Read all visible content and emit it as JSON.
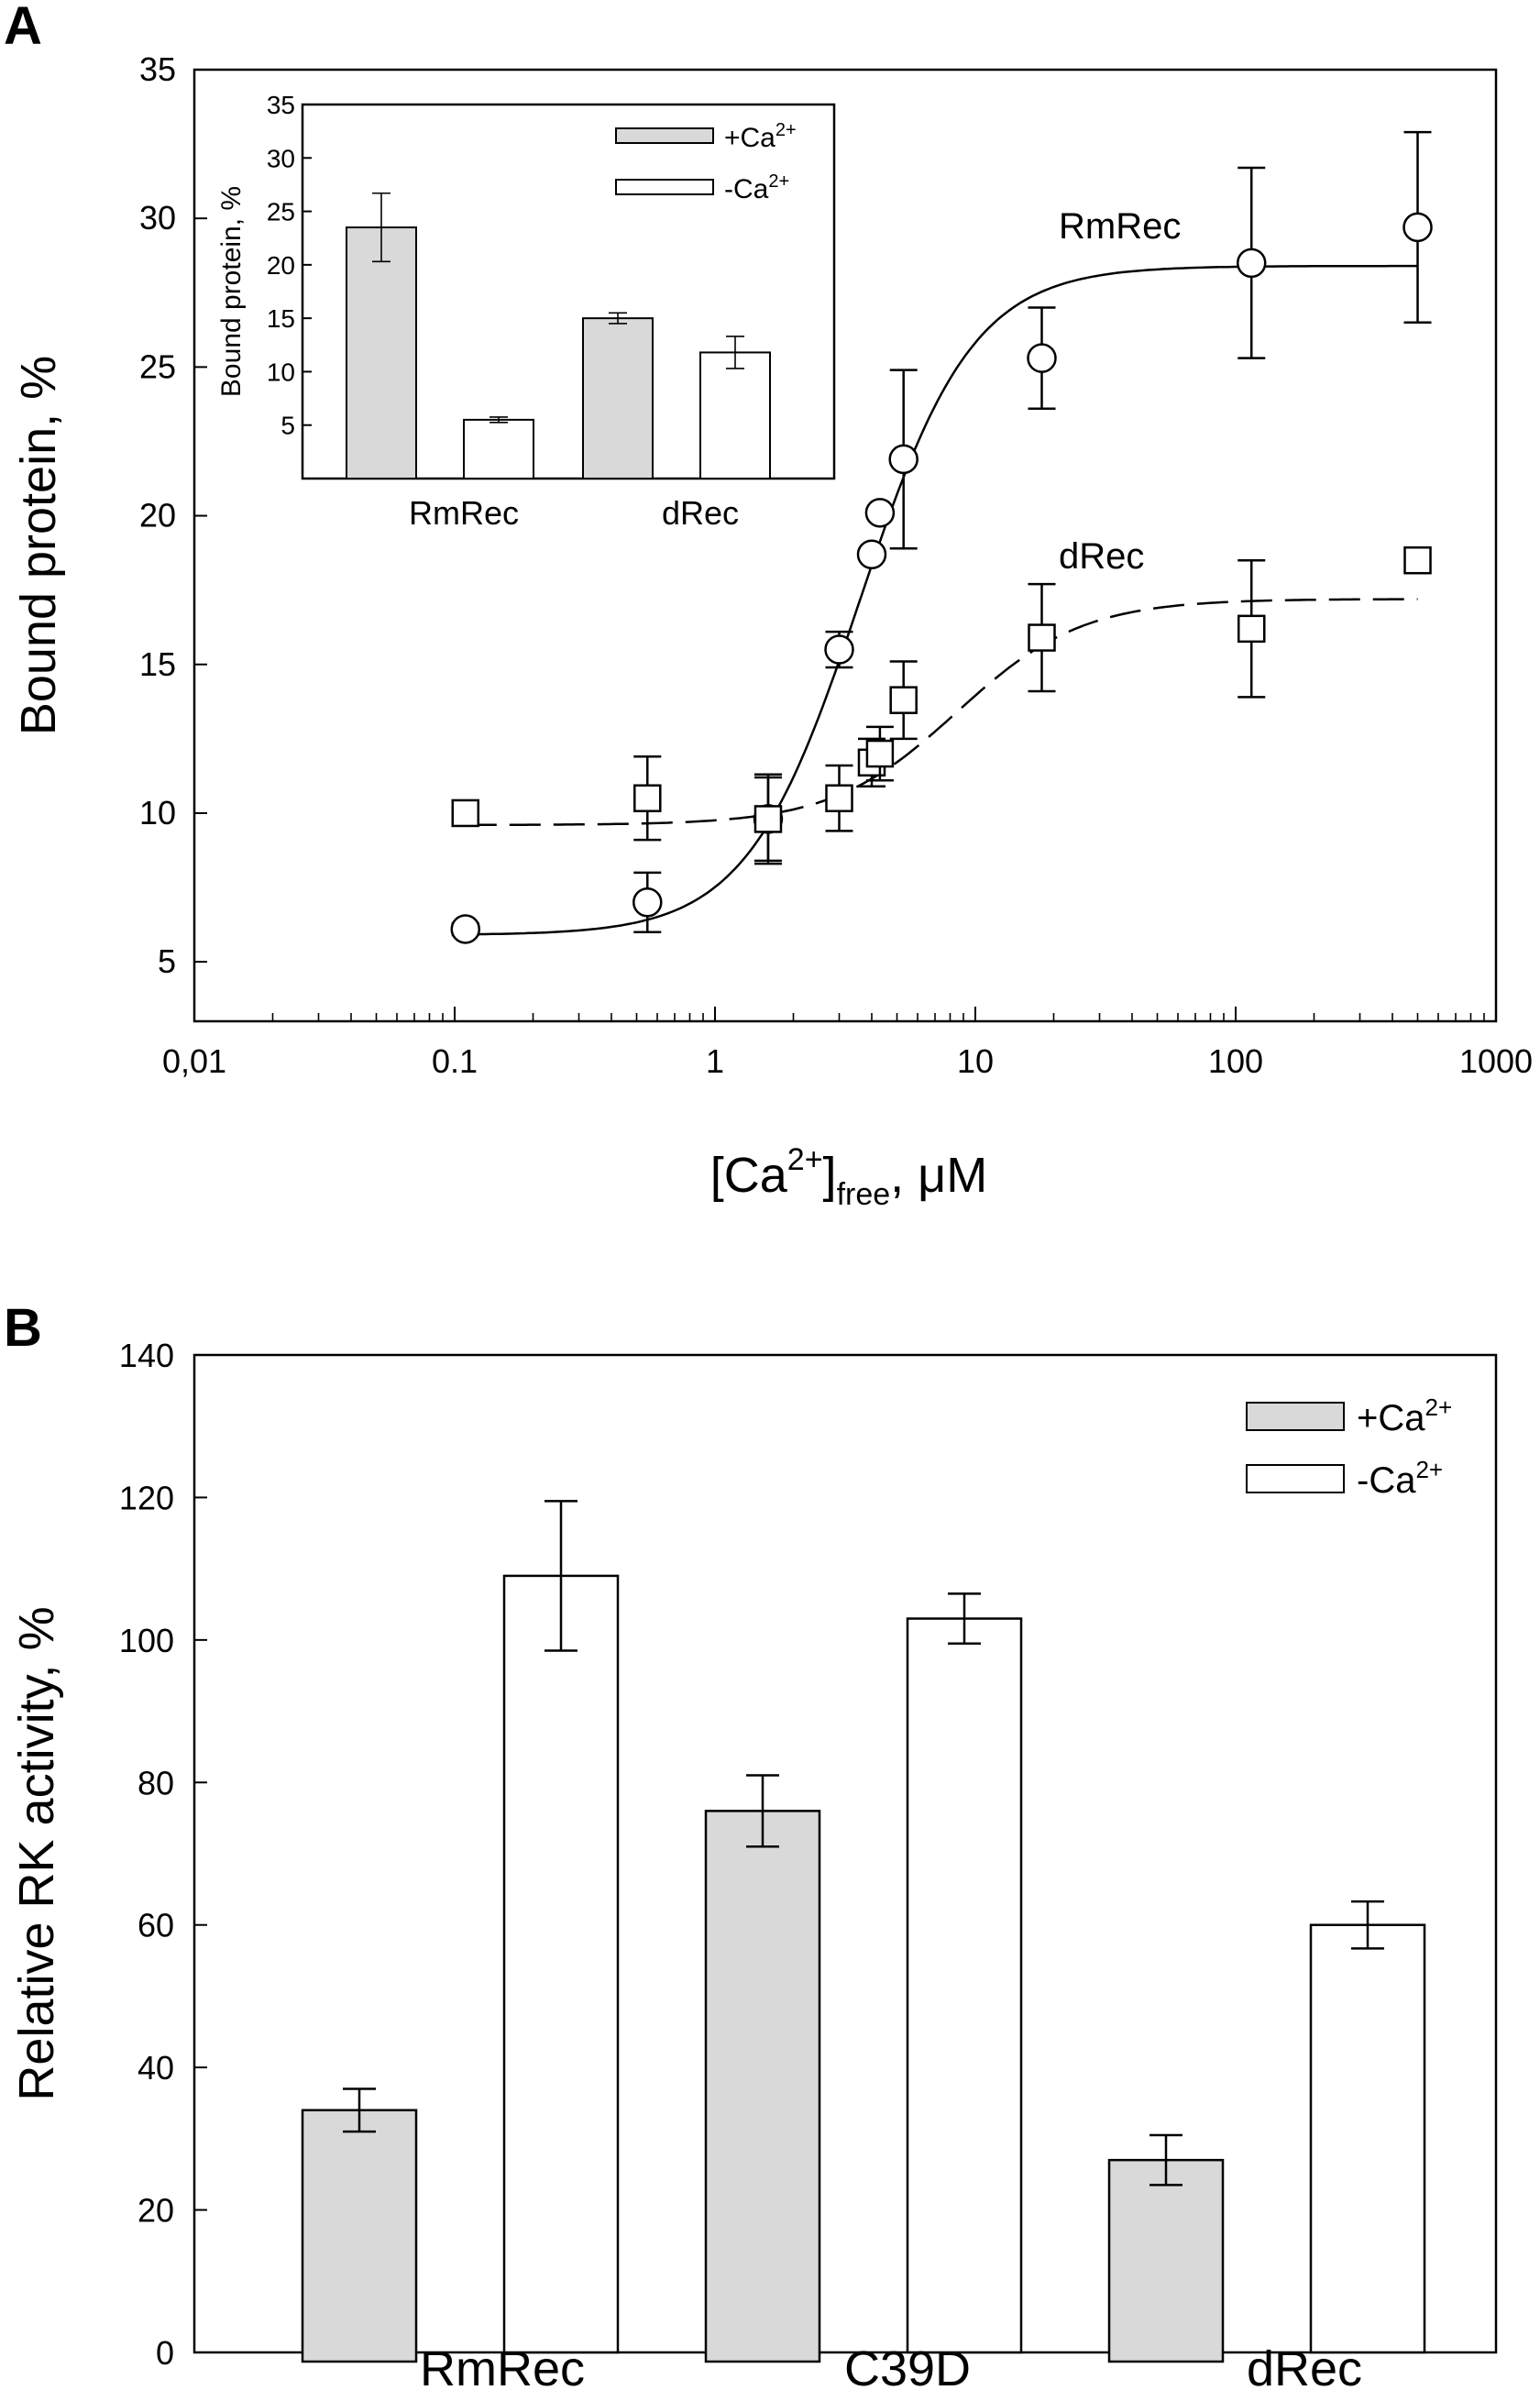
{
  "panel_a": {
    "label": "A",
    "series_labels": {
      "rmrec": "RmRec",
      "drec": "dRec"
    },
    "x_axis": {
      "title_base": "[Ca",
      "title_sup": "2+",
      "title_close": "]",
      "title_sub": "free",
      "title_unit": ", μM",
      "tick_labels": [
        "0,01",
        "0.1",
        "1",
        "10",
        "100",
        "1000"
      ]
    },
    "y_axis": {
      "title": "Bound protein, %",
      "tick_labels": [
        "5",
        "10",
        "15",
        "20",
        "25",
        "30",
        "35"
      ]
    },
    "inset": {
      "y_title": "Bound protein, %",
      "tick_labels": [
        "5",
        "10",
        "15",
        "20",
        "25",
        "30",
        "35"
      ],
      "categories": [
        "RmRec",
        "dRec"
      ],
      "legend": {
        "plus_base": "+Ca",
        "minus_base": "-Ca",
        "sup": "2+"
      }
    }
  },
  "panel_b": {
    "label": "B",
    "y_axis": {
      "title": "Relative RK activity, %",
      "tick_labels": [
        "0",
        "20",
        "40",
        "60",
        "80",
        "100",
        "120",
        "140"
      ]
    },
    "categories": [
      "RmRec",
      "C39D",
      "dRec"
    ],
    "legend": {
      "plus_base": "+Ca",
      "minus_base": "-Ca",
      "sup": "2+"
    }
  },
  "colors": {
    "plus_ca_fill": "#d9d9d9",
    "minus_ca_fill": "#ffffff",
    "line": "#000000"
  },
  "chart_data": [
    {
      "type": "scatter",
      "panel": "A",
      "xlabel": "[Ca2+]free, μM",
      "ylabel": "Bound protein, %",
      "xscale": "log",
      "xlim": [
        0.01,
        1000
      ],
      "ylim": [
        3,
        35
      ],
      "series": [
        {
          "name": "RmRec",
          "marker": "circle",
          "fit": "solid",
          "x": [
            0.11,
            0.55,
            1.6,
            3.0,
            4.0,
            4.3,
            5.3,
            18,
            115,
            500
          ],
          "y": [
            6.1,
            7.0,
            9.8,
            15.5,
            18.7,
            20.1,
            21.9,
            25.3,
            28.5,
            29.7
          ],
          "err": [
            0.2,
            1.0,
            1.5,
            0.6,
            0.0,
            0.0,
            3.0,
            1.7,
            3.2,
            3.2
          ],
          "fit_params": {
            "bottom": 5.9,
            "top": 28.4,
            "ec50": 3.6,
            "hill": 2.0
          }
        },
        {
          "name": "dRec",
          "marker": "square",
          "fit": "dashed",
          "x": [
            0.11,
            0.55,
            1.6,
            3.0,
            4.0,
            4.3,
            5.3,
            18,
            115,
            500
          ],
          "y": [
            10.0,
            10.5,
            9.8,
            10.5,
            11.7,
            12.0,
            13.8,
            15.9,
            16.2,
            18.5
          ],
          "err": [
            0.15,
            1.4,
            1.4,
            1.1,
            0.8,
            0.9,
            1.3,
            1.8,
            2.3,
            0.3
          ],
          "fit_params": {
            "bottom": 9.6,
            "top": 17.2,
            "ec50": 8.5,
            "hill": 1.8
          }
        }
      ]
    },
    {
      "type": "bar",
      "panel": "A-inset",
      "ylabel": "Bound protein, %",
      "ylim": [
        0,
        35
      ],
      "categories": [
        "RmRec",
        "dRec"
      ],
      "series": [
        {
          "name": "+Ca2+",
          "values": [
            23.5,
            15.0
          ],
          "errors": [
            3.2,
            0.5
          ]
        },
        {
          "name": "-Ca2+",
          "values": [
            5.5,
            11.8
          ],
          "errors": [
            0.25,
            1.5
          ]
        }
      ]
    },
    {
      "type": "bar",
      "panel": "B",
      "ylabel": "Relative RK activity, %",
      "ylim": [
        0,
        140
      ],
      "categories": [
        "RmRec",
        "C39D",
        "dRec"
      ],
      "series": [
        {
          "name": "+Ca2+",
          "values": [
            34,
            76,
            27
          ],
          "errors": [
            3,
            5,
            3.5
          ]
        },
        {
          "name": "-Ca2+",
          "values": [
            109,
            103,
            60
          ],
          "errors": [
            10.5,
            3.5,
            3.3
          ]
        }
      ]
    }
  ]
}
